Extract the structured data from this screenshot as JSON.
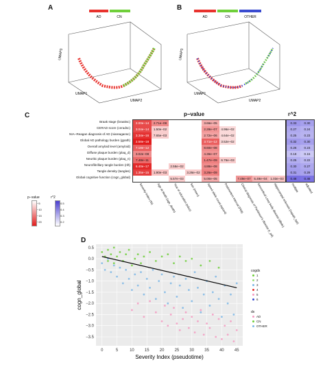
{
  "panels": {
    "a": {
      "letter": "A",
      "legend": [
        "AD",
        "CN"
      ],
      "axes": [
        "UMAP1",
        "UMAP2",
        "UMAP3"
      ]
    },
    "b": {
      "letter": "B",
      "legend": [
        "AD",
        "CN",
        "OTHER"
      ],
      "axes": [
        "UMAP1",
        "UMAP2",
        "UMAP3"
      ]
    },
    "c": {
      "letter": "C",
      "title_pvalue": "p−value",
      "title_r2": "r^2",
      "rows": [
        "Braak stage (braaksc)",
        "CERAD score (ceradsc)",
        "NIA−Reagan diagnosis of AD (niareagansc)",
        "Global AD pathology burden (gpath)",
        "Overall amyloid level (amyloid)",
        "Diffuse plaque burden (plaq_d)",
        "Neuritic plaque burden (plaq_n)",
        "Neurofibrillary tangle burden (nft)",
        "Tangle density (tangles)",
        "Global cognitive function (cogn_global)"
      ],
      "columns": [
        "Severity Index (SI)",
        "Age at death (age_death)",
        "Year of education (educ)",
        "Sex (msex)",
        "Apoe4 allele count (apoe4)",
        "Postmortem interval (PMI)",
        "Clinical diagnosis of Parkinson's disease (r_pd)",
        "Neocortical Lewy body disease (dlbdx)",
        "Hippocampal sclerosis (hspath_typ)"
      ],
      "cells": [
        [
          "2.00e−14",
          "2.71e−08",
          "",
          "",
          "3.66e−05",
          "",
          "",
          "",
          ""
        ],
        [
          "3.04e−14",
          "1.50e−02",
          "",
          "",
          "2.28e−07",
          "4.96e−02",
          "",
          "",
          ""
        ],
        [
          "3.34e−16",
          "7.65e−03",
          "",
          "",
          "2.72e−06",
          "4.64e−02",
          "",
          "",
          ""
        ],
        [
          "2.58e−18",
          "",
          "",
          "",
          "3.71e−12",
          "3.52e−02",
          "",
          "",
          ""
        ],
        [
          "7.18e−12",
          "",
          "",
          "",
          "8.60e−08",
          "",
          "",
          "",
          ""
        ],
        [
          "3.02e−08",
          "",
          "",
          "",
          "4.36e−07",
          "",
          "",
          "",
          ""
        ],
        [
          "7.48e−11",
          "",
          "",
          "",
          "1.47e−09",
          "6.76e−03",
          "",
          "",
          ""
        ],
        [
          "6.40e−17",
          "",
          "2.56e−02",
          "",
          "4.88e−08",
          "",
          "",
          "",
          ""
        ],
        [
          "1.35e−15",
          "1.90e−03",
          "",
          "3.26e−02",
          "3.26e−09",
          "",
          "",
          "",
          ""
        ],
        [
          "",
          "",
          "5.57e−03",
          "",
          "5.00e−05",
          "",
          "7.49e−07",
          "5.49e−04",
          "1.03e−03"
        ]
      ],
      "cell_levels": [
        [
          14,
          8,
          0,
          0,
          5,
          0,
          0,
          0,
          0
        ],
        [
          14,
          2,
          0,
          0,
          7,
          1,
          0,
          0,
          0
        ],
        [
          16,
          2,
          0,
          0,
          6,
          1,
          0,
          0,
          0
        ],
        [
          18,
          0,
          0,
          0,
          12,
          1,
          0,
          0,
          0
        ],
        [
          12,
          0,
          0,
          0,
          8,
          0,
          0,
          0,
          0
        ],
        [
          8,
          0,
          0,
          0,
          7,
          0,
          0,
          0,
          0
        ],
        [
          11,
          0,
          0,
          0,
          9,
          2,
          0,
          0,
          0
        ],
        [
          17,
          0,
          2,
          0,
          8,
          0,
          0,
          0,
          0
        ],
        [
          15,
          3,
          0,
          2,
          9,
          0,
          0,
          0,
          0
        ],
        [
          0,
          0,
          2,
          0,
          5,
          0,
          7,
          4,
          3
        ]
      ],
      "r2_columns": [
        "multiple",
        "adjusted"
      ],
      "r2": [
        [
          "0.33",
          "0.30"
        ],
        [
          "0.27",
          "0.24"
        ],
        [
          "0.25",
          "0.23"
        ],
        [
          "0.32",
          "0.30"
        ],
        [
          "0.26",
          "0.23"
        ],
        [
          "0.18",
          "0.15"
        ],
        [
          "0.25",
          "0.22"
        ],
        [
          "0.30",
          "0.27"
        ],
        [
          "0.31",
          "0.29"
        ],
        [
          "0.48",
          "0.46"
        ]
      ],
      "legend": {
        "pvalue_title": "p−value",
        "r2_title": "r^2",
        "pvalue_ticks": [
          "−5",
          "−10",
          "−15",
          "−20"
        ],
        "r2_ticks": [
          "0.5",
          "0.4",
          "0.3",
          "0.2"
        ]
      }
    },
    "d": {
      "letter": "D",
      "xlabel": "Severity Index (pseudotime)",
      "ylabel": "cogn_global",
      "legend_cogdx_title": "cogdx",
      "legend_cogdx": [
        "1",
        "2",
        "3",
        "4",
        "5",
        "6"
      ],
      "legend_dx_title": "dx",
      "legend_dx": [
        "AD",
        "CN",
        "OTHER"
      ]
    }
  },
  "colors": {
    "ad": "#e8322d",
    "cn": "#6fcf3a",
    "other": "#3a4bd0",
    "pink": "#f49ac1",
    "lightblue": "#7cb7e6",
    "heat": "#e21d1d",
    "r2": "#8a86e8"
  },
  "chart_data": {
    "type": "scatter",
    "xlabel": "Severity Index (pseudotime)",
    "ylabel": "cogn_global",
    "xlim": [
      -2,
      47
    ],
    "ylim": [
      -3.9,
      0.65
    ],
    "xticks": [
      0,
      5,
      10,
      15,
      20,
      25,
      30,
      35,
      40,
      45
    ],
    "yticks": [
      0.5,
      0,
      -0.5,
      -1,
      -1.5,
      -2,
      -2.5,
      -3,
      -3.5
    ],
    "yticklabels": [
      "0.5",
      "0.0",
      "−0.5",
      "−1.0",
      "−1.5",
      "−2.0",
      "−2.5",
      "−3.0",
      "−3.5"
    ],
    "regression": {
      "x": [
        0,
        45
      ],
      "y": [
        0.1,
        -1.3
      ]
    },
    "series": [
      {
        "name": "CN",
        "color": "#6fcf3a",
        "points": [
          [
            0,
            0.3
          ],
          [
            1,
            0.1
          ],
          [
            2,
            0.4
          ],
          [
            2,
            -0.1
          ],
          [
            3,
            0.2
          ],
          [
            4,
            0.5
          ],
          [
            4,
            -0.2
          ],
          [
            5,
            0.1
          ],
          [
            6,
            0.3
          ],
          [
            7,
            -0.1
          ],
          [
            8,
            0.2
          ],
          [
            9,
            0.4
          ],
          [
            10,
            -0.3
          ],
          [
            11,
            0.0
          ],
          [
            12,
            0.2
          ],
          [
            13,
            -0.2
          ],
          [
            14,
            0.1
          ],
          [
            16,
            0.3
          ],
          [
            18,
            -0.1
          ],
          [
            20,
            0.1
          ],
          [
            22,
            0.2
          ],
          [
            24,
            -0.2
          ],
          [
            26,
            0.1
          ],
          [
            28,
            -0.1
          ],
          [
            30,
            0.0
          ],
          [
            33,
            -0.3
          ],
          [
            36,
            -0.1
          ],
          [
            39,
            -0.4
          ]
        ]
      },
      {
        "name": "OTHER",
        "color": "#7cb7e6",
        "points": [
          [
            0,
            -0.2
          ],
          [
            1,
            -0.5
          ],
          [
            2,
            0.0
          ],
          [
            3,
            -0.6
          ],
          [
            4,
            -0.3
          ],
          [
            5,
            -0.8
          ],
          [
            6,
            -0.4
          ],
          [
            7,
            -1.1
          ],
          [
            8,
            -0.5
          ],
          [
            9,
            -0.9
          ],
          [
            10,
            -1.4
          ],
          [
            11,
            -0.7
          ],
          [
            12,
            -1.2
          ],
          [
            13,
            -0.6
          ],
          [
            14,
            -1.6
          ],
          [
            15,
            -0.9
          ],
          [
            16,
            -1.3
          ],
          [
            17,
            -0.5
          ],
          [
            18,
            -1.8
          ],
          [
            19,
            -1.0
          ],
          [
            20,
            -0.7
          ],
          [
            21,
            -1.5
          ],
          [
            22,
            -2.0
          ],
          [
            23,
            -1.1
          ],
          [
            24,
            -0.8
          ],
          [
            25,
            -1.7
          ],
          [
            26,
            -1.2
          ],
          [
            27,
            -2.2
          ],
          [
            28,
            -0.9
          ],
          [
            29,
            -1.4
          ],
          [
            30,
            -1.9
          ],
          [
            31,
            -0.6
          ],
          [
            32,
            -1.3
          ],
          [
            33,
            -2.4
          ],
          [
            34,
            -1.6
          ],
          [
            35,
            -1.0
          ],
          [
            36,
            -2.1
          ],
          [
            37,
            -1.5
          ],
          [
            38,
            -0.8
          ],
          [
            39,
            -1.8
          ],
          [
            40,
            -2.6
          ],
          [
            41,
            -1.2
          ],
          [
            42,
            -2.0
          ],
          [
            43,
            -1.6
          ],
          [
            44,
            -2.5
          ],
          [
            45,
            -1.1
          ]
        ]
      },
      {
        "name": "AD",
        "color": "#f49ac1",
        "points": [
          [
            10,
            -2.3
          ],
          [
            12,
            -2.0
          ],
          [
            14,
            -2.6
          ],
          [
            16,
            -1.9
          ],
          [
            18,
            -2.4
          ],
          [
            20,
            -2.8
          ],
          [
            21,
            -2.1
          ],
          [
            22,
            -3.0
          ],
          [
            23,
            -2.5
          ],
          [
            24,
            -2.2
          ],
          [
            25,
            -2.9
          ],
          [
            26,
            -3.2
          ],
          [
            27,
            -2.7
          ],
          [
            28,
            -2.4
          ],
          [
            29,
            -3.1
          ],
          [
            30,
            -2.6
          ],
          [
            31,
            -3.3
          ],
          [
            32,
            -2.8
          ],
          [
            33,
            -2.3
          ],
          [
            34,
            -3.4
          ],
          [
            35,
            -2.9
          ],
          [
            36,
            -3.1
          ],
          [
            37,
            -2.5
          ],
          [
            38,
            -3.5
          ],
          [
            39,
            -2.7
          ],
          [
            40,
            -3.6
          ],
          [
            41,
            -3.0
          ],
          [
            42,
            -3.4
          ],
          [
            43,
            -2.8
          ],
          [
            44,
            -3.7
          ],
          [
            45,
            -3.2
          ]
        ]
      }
    ]
  }
}
